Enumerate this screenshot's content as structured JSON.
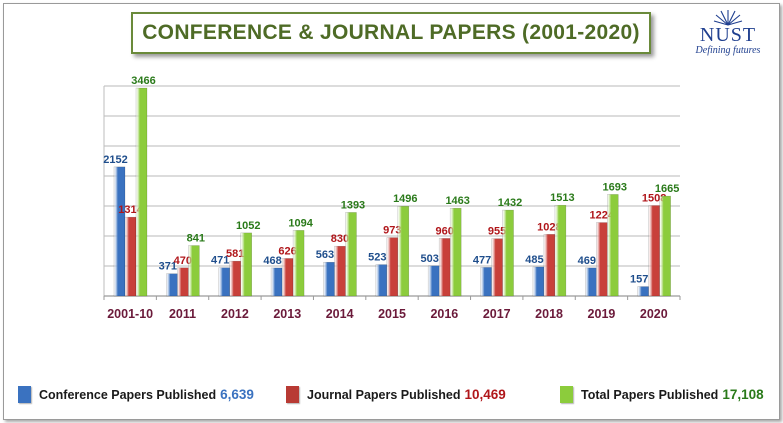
{
  "title": "CONFERENCE & JOURNAL PAPERS (2001-2020)",
  "logo": {
    "name": "NUST",
    "tagline": "Defining futures",
    "color": "#1f3f8f"
  },
  "chart_data": {
    "type": "bar",
    "title": "CONFERENCE & JOURNAL PAPERS (2001-2020)",
    "categories": [
      "2001-10",
      "2011",
      "2012",
      "2013",
      "2014",
      "2015",
      "2016",
      "2017",
      "2018",
      "2019",
      "2020"
    ],
    "series": [
      {
        "name": "Conference Papers Published",
        "color": "#3a72c0",
        "label_color": "#1f4e8c",
        "values": [
          2152,
          371,
          471,
          468,
          563,
          523,
          503,
          477,
          485,
          469,
          157
        ]
      },
      {
        "name": "Journal Papers Published",
        "color": "#c8403a",
        "label_color": "#b0161a",
        "values": [
          1314,
          470,
          581,
          626,
          830,
          973,
          960,
          955,
          1028,
          1224,
          1508
        ]
      },
      {
        "name": "Total Papers Published",
        "color": "#8ccc3c",
        "label_color": "#2a7a1a",
        "values": [
          3466,
          841,
          1052,
          1094,
          1393,
          1496,
          1463,
          1432,
          1513,
          1693,
          1665
        ]
      }
    ],
    "ylim": [
      0,
      3500
    ],
    "grid": true,
    "legend_position": "bottom",
    "category_label_color": "#6b1a3a"
  },
  "legend": [
    {
      "label": "Conference Papers Published",
      "value": "6,639",
      "color": "#3a72c0",
      "value_color": "#3a72c0"
    },
    {
      "label": "Journal Papers Published",
      "value": "10,469",
      "color": "#b83a34",
      "value_color": "#b0161a"
    },
    {
      "label": "Total Papers Published",
      "value": "17,108",
      "color": "#8ccc3c",
      "value_color": "#2a7a1a"
    }
  ]
}
